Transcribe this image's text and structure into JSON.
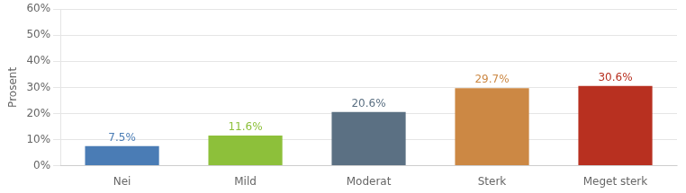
{
  "chart_data": {
    "type": "bar",
    "categories": [
      "Nei",
      "Mild",
      "Moderat",
      "Sterk",
      "Meget sterk"
    ],
    "values": [
      7.5,
      11.6,
      20.6,
      29.7,
      30.6
    ],
    "value_labels": [
      "7.5%",
      "11.6%",
      "20.6%",
      "29.7%",
      "30.6%"
    ],
    "colors": [
      "#4a7cb5",
      "#8dc03a",
      "#5b7083",
      "#cc8844",
      "#b83020"
    ],
    "ylabel": "Prosent",
    "ylim": [
      0,
      60
    ],
    "yticks": [
      {
        "value": 0,
        "label": "0%"
      },
      {
        "value": 10,
        "label": "10%"
      },
      {
        "value": 20,
        "label": "20%"
      },
      {
        "value": 30,
        "label": "30%"
      },
      {
        "value": 40,
        "label": "40%"
      },
      {
        "value": 50,
        "label": "50%"
      },
      {
        "value": 60,
        "label": "60%"
      }
    ],
    "grid": true,
    "data_labels": true
  }
}
